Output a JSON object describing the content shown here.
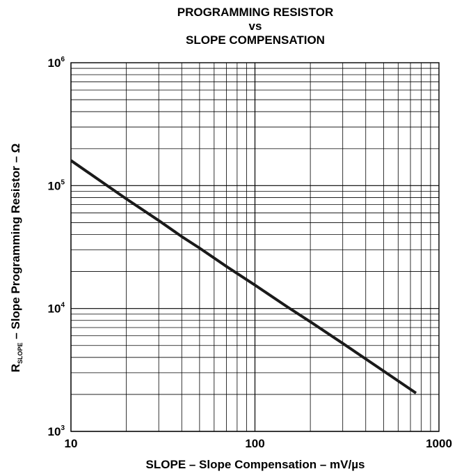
{
  "chart_data": {
    "type": "line",
    "title": [
      "PROGRAMMING RESISTOR",
      "vs",
      "SLOPE COMPENSATION"
    ],
    "xlabel": "SLOPE – Slope Compensation – mV/µs",
    "ylabel": {
      "symbol": "R",
      "subscript": "SLOPE",
      "text": " – Slope Programming Resistor – Ω"
    },
    "x_scale": "log",
    "y_scale": "log",
    "xlim": [
      10,
      1000
    ],
    "ylim": [
      1000,
      1000000
    ],
    "grid": true,
    "x_ticks": [
      {
        "value": 10,
        "label": "10"
      },
      {
        "value": 100,
        "label": "100"
      },
      {
        "value": 1000,
        "label": "1000"
      }
    ],
    "y_ticks": [
      {
        "value": 1000,
        "base": "10",
        "exp": "3"
      },
      {
        "value": 10000,
        "base": "10",
        "exp": "4"
      },
      {
        "value": 100000,
        "base": "10",
        "exp": "5"
      },
      {
        "value": 1000000,
        "base": "10",
        "exp": "6"
      }
    ],
    "series": [
      {
        "color": "#1a1a1a",
        "x": [
          10,
          20,
          30,
          40,
          50,
          70,
          100,
          150,
          200,
          300,
          500,
          750
        ],
        "y": [
          160000,
          78000,
          52000,
          38500,
          31000,
          22000,
          15500,
          10300,
          7800,
          5200,
          3100,
          2050
        ]
      }
    ]
  }
}
